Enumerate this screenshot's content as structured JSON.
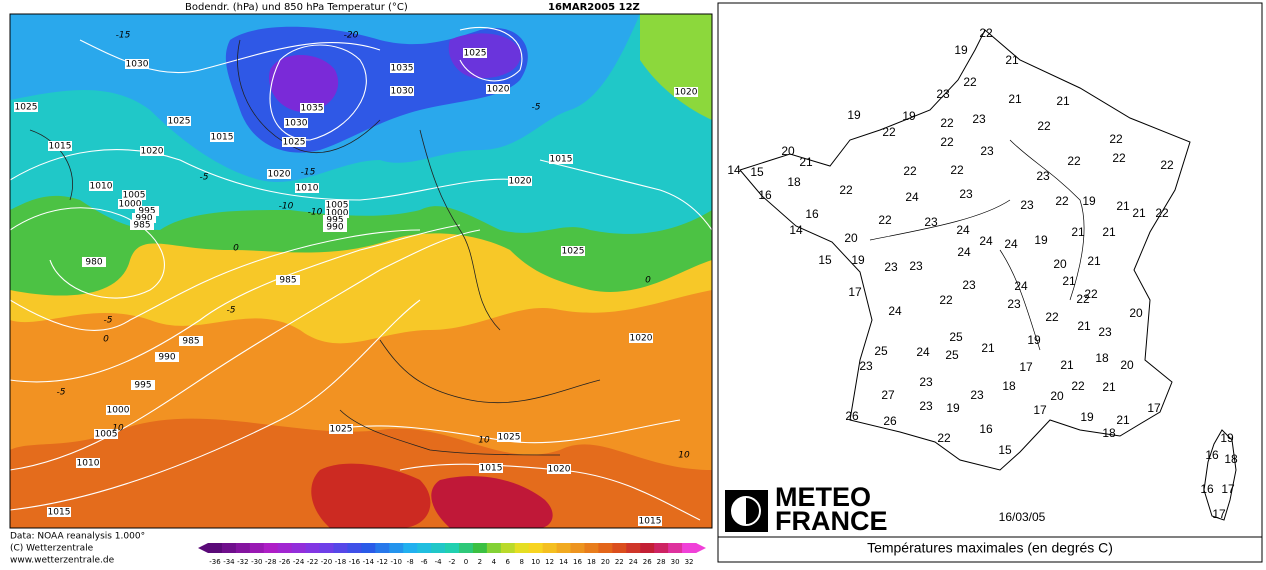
{
  "weather_map": {
    "title": "Bodendr. (hPa) und 850 hPa Temperatur (°C)",
    "date": "16MAR2005 12Z",
    "credits": [
      "Data: NOAA reanalysis 1.000°",
      "(C) Wetterzentrale",
      "www.wetterzentrale.de"
    ],
    "isobar_labels": [
      1030,
      1025,
      1025,
      1015,
      1020,
      1015,
      1010,
      1005,
      1000,
      995,
      990,
      985,
      980,
      1025,
      1035,
      1030,
      1020,
      1035,
      1030,
      1025,
      1020,
      1010,
      1005,
      1000,
      995,
      990,
      1020,
      1015,
      1020,
      1025,
      985,
      985,
      990,
      995,
      1000,
      1005,
      1010,
      1015,
      1025,
      1025,
      1015,
      1020,
      1020,
      1015
    ],
    "temperature_labels": [
      -15,
      -20,
      -15,
      -5,
      -10,
      -5,
      0,
      -5,
      0,
      -5,
      -5,
      10,
      10,
      10,
      0,
      -10
    ],
    "color_scale": [
      -36,
      -34,
      -32,
      -30,
      -28,
      -26,
      -24,
      -22,
      -20,
      -18,
      -16,
      -14,
      -12,
      -10,
      -8,
      -6,
      -4,
      -2,
      0,
      2,
      4,
      6,
      8,
      10,
      12,
      14,
      16,
      18,
      20,
      22,
      24,
      26,
      28,
      30,
      32
    ]
  },
  "france_map": {
    "logo": [
      "METEO",
      "FRANCE"
    ],
    "date": "16/03/05",
    "caption": "Températures maximales (en degrés C)",
    "temperatures": [
      22,
      19,
      21,
      22,
      23,
      21,
      21,
      19,
      19,
      22,
      23,
      22,
      22,
      22,
      22,
      23,
      22,
      20,
      22,
      22,
      14,
      15,
      21,
      22,
      22,
      23,
      18,
      22,
      24,
      23,
      22,
      19,
      23,
      16,
      21,
      22,
      21,
      16,
      22,
      23,
      14,
      20,
      24,
      24,
      24,
      19,
      21,
      21,
      24,
      15,
      19,
      20,
      21,
      23,
      23,
      21,
      23,
      24,
      17,
      22,
      22,
      22,
      23,
      24,
      22,
      20,
      21,
      23,
      25,
      19,
      25,
      24,
      25,
      21,
      23,
      17,
      21,
      18,
      20,
      23,
      18,
      27,
      23,
      20,
      22,
      21,
      23,
      19,
      17,
      19,
      17,
      26,
      26,
      21,
      16,
      18,
      22,
      15,
      19,
      16,
      18,
      16,
      17,
      17
    ]
  }
}
